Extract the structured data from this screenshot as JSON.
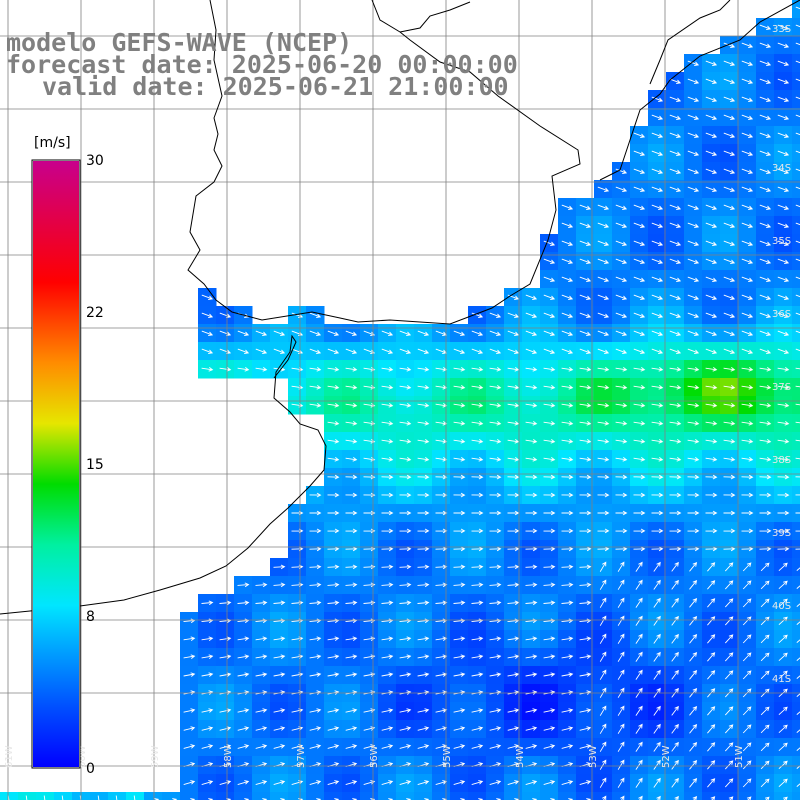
{
  "header": {
    "model": "modelo GEFS-WAVE (NCEP)",
    "forecast": "forecast date: 2025-06-20 00:00:00",
    "valid": "valid date: 2025-06-21 21:00:00"
  },
  "colorbar": {
    "unit": "[m/s]",
    "ticks": [
      "30",
      "22",
      "15",
      "8",
      "0"
    ],
    "min": 0,
    "max": 30
  },
  "grid_labels": {
    "latitudes": [
      "33S",
      "34S",
      "35S",
      "36S",
      "37S",
      "38S",
      "39S",
      "40S",
      "41S"
    ],
    "longitudes": [
      "61W",
      "60W",
      "59W",
      "58W",
      "57W",
      "56W",
      "55W",
      "54W",
      "53W",
      "52W",
      "51W"
    ]
  },
  "colors": {
    "land": "#ffffff",
    "coast": "#000000",
    "grid": "#808080",
    "arrow": "#ffffff",
    "text": "#808080"
  },
  "palette_stops": [
    {
      "value": 0,
      "color": "#0000ff"
    },
    {
      "value": 3,
      "color": "#0050ff"
    },
    {
      "value": 6,
      "color": "#00a8ff"
    },
    {
      "value": 8,
      "color": "#00e6ff"
    },
    {
      "value": 11,
      "color": "#00f0a0"
    },
    {
      "value": 14,
      "color": "#00dc00"
    },
    {
      "value": 17,
      "color": "#e6e600"
    },
    {
      "value": 20,
      "color": "#ff8c00"
    },
    {
      "value": 24,
      "color": "#ff0000"
    },
    {
      "value": 30,
      "color": "#c8008c"
    }
  ]
}
